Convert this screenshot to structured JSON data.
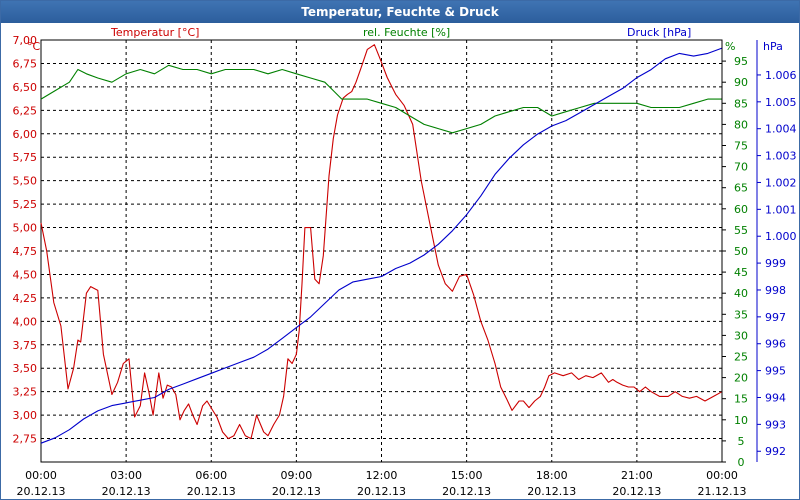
{
  "window": {
    "title": "Temperatur, Feuchte & Druck"
  },
  "chart_data": {
    "type": "line",
    "title": "Temperatur, Feuchte & Druck",
    "xlabel": "",
    "x_ticks": [
      {
        "hour": 0,
        "time": "00:00",
        "date": "20.12.13"
      },
      {
        "hour": 3,
        "time": "03:00",
        "date": "20.12.13"
      },
      {
        "hour": 6,
        "time": "06:00",
        "date": "20.12.13"
      },
      {
        "hour": 9,
        "time": "09:00",
        "date": "20.12.13"
      },
      {
        "hour": 12,
        "time": "12:00",
        "date": "20.12.13"
      },
      {
        "hour": 15,
        "time": "15:00",
        "date": "20.12.13"
      },
      {
        "hour": 18,
        "time": "18:00",
        "date": "20.12.13"
      },
      {
        "hour": 21,
        "time": "21:00",
        "date": "20.12.13"
      },
      {
        "hour": 24,
        "time": "00:00",
        "date": "21.12.13"
      }
    ],
    "xlim": [
      0,
      24
    ],
    "grid": true,
    "axes": {
      "temperature": {
        "unit": "°C",
        "label": "Temperatur [°C]",
        "color": "#cc0000",
        "ylim": [
          2.5,
          7.0
        ],
        "ticks": [
          2.75,
          3.0,
          3.25,
          3.5,
          3.75,
          4.0,
          4.25,
          4.5,
          4.75,
          5.0,
          5.25,
          5.5,
          5.75,
          6.0,
          6.25,
          6.5,
          6.75,
          7.0
        ],
        "tick_labels": [
          "2,75",
          "3,00",
          "3,25",
          "3,50",
          "3,75",
          "4,00",
          "4,25",
          "4,50",
          "4,75",
          "5,00",
          "5,25",
          "5,50",
          "5,75",
          "6,00",
          "6,25",
          "6,50",
          "6,75",
          "7,00"
        ]
      },
      "humidity": {
        "unit": "%",
        "label": "rel. Feuchte [%]",
        "color": "#008000",
        "ylim": [
          0,
          100
        ],
        "ticks": [
          0,
          5,
          10,
          15,
          20,
          25,
          30,
          35,
          40,
          45,
          50,
          55,
          60,
          65,
          70,
          75,
          80,
          85,
          90,
          95
        ],
        "tick_labels": [
          "0",
          "5",
          "10",
          "15",
          "20",
          "25",
          "30",
          "35",
          "40",
          "45",
          "50",
          "55",
          "60",
          "65",
          "70",
          "75",
          "80",
          "85",
          "90",
          "95"
        ]
      },
      "pressure": {
        "unit": "hPa",
        "label": "Druck [hPa]",
        "color": "#0000cc",
        "ylim": [
          991.6,
          1007.3
        ],
        "ticks": [
          992,
          993,
          994,
          995,
          996,
          997,
          998,
          999,
          1000,
          1001,
          1002,
          1003,
          1004,
          1005,
          1006
        ],
        "tick_labels": [
          "992",
          "993",
          "994",
          "995",
          "996",
          "997",
          "998",
          "999",
          "1.000",
          "1.001",
          "1.002",
          "1.003",
          "1.004",
          "1.005",
          "1.006"
        ]
      }
    },
    "series": [
      {
        "name": "Temperatur [°C]",
        "axis": "temperature",
        "color": "#cc0000",
        "x": [
          0,
          0.2,
          0.45,
          0.7,
          0.95,
          1.15,
          1.3,
          1.4,
          1.6,
          1.75,
          2.0,
          2.2,
          2.5,
          2.7,
          2.9,
          3.1,
          3.3,
          3.5,
          3.65,
          3.8,
          3.95,
          4.15,
          4.3,
          4.45,
          4.6,
          4.75,
          4.9,
          5.05,
          5.2,
          5.35,
          5.5,
          5.7,
          5.85,
          6.05,
          6.2,
          6.4,
          6.6,
          6.8,
          7.0,
          7.2,
          7.4,
          7.6,
          7.85,
          8.0,
          8.2,
          8.4,
          8.55,
          8.7,
          8.85,
          9.0,
          9.1,
          9.2,
          9.3,
          9.5,
          9.65,
          9.8,
          9.95,
          10.15,
          10.3,
          10.45,
          10.65,
          10.8,
          10.95,
          11.1,
          11.3,
          11.5,
          11.75,
          11.95,
          12.2,
          12.5,
          12.8,
          13.1,
          13.4,
          13.7,
          14.0,
          14.25,
          14.5,
          14.75,
          15.0,
          15.25,
          15.5,
          15.75,
          16.0,
          16.2,
          16.4,
          16.6,
          16.85,
          17.0,
          17.2,
          17.4,
          17.6,
          17.75,
          17.9,
          18.1,
          18.4,
          18.7,
          18.95,
          19.2,
          19.45,
          19.75,
          20.0,
          20.15,
          20.3,
          20.5,
          20.7,
          20.9,
          21.1,
          21.3,
          21.5,
          21.8,
          22.1,
          22.35,
          22.6,
          22.85,
          23.1,
          23.4,
          23.7,
          24.0
        ],
        "values": [
          5.05,
          4.75,
          4.2,
          3.95,
          3.28,
          3.5,
          3.8,
          3.78,
          4.3,
          4.37,
          4.33,
          3.65,
          3.22,
          3.35,
          3.55,
          3.6,
          2.98,
          3.1,
          3.45,
          3.25,
          3.0,
          3.45,
          3.18,
          3.32,
          3.3,
          3.22,
          2.95,
          3.05,
          3.12,
          3.0,
          2.9,
          3.1,
          3.15,
          3.05,
          2.98,
          2.82,
          2.75,
          2.78,
          2.9,
          2.78,
          2.75,
          3.0,
          2.82,
          2.78,
          2.9,
          3.0,
          3.2,
          3.6,
          3.55,
          3.65,
          3.9,
          4.4,
          5.0,
          5.0,
          4.45,
          4.4,
          4.7,
          5.55,
          5.95,
          6.2,
          6.38,
          6.42,
          6.45,
          6.55,
          6.72,
          6.9,
          6.95,
          6.8,
          6.6,
          6.42,
          6.3,
          6.1,
          5.5,
          5.05,
          4.6,
          4.4,
          4.32,
          4.48,
          4.5,
          4.28,
          4.0,
          3.8,
          3.55,
          3.3,
          3.18,
          3.05,
          3.15,
          3.15,
          3.08,
          3.15,
          3.2,
          3.3,
          3.42,
          3.45,
          3.42,
          3.45,
          3.38,
          3.42,
          3.4,
          3.45,
          3.35,
          3.38,
          3.35,
          3.32,
          3.3,
          3.3,
          3.25,
          3.3,
          3.25,
          3.2,
          3.2,
          3.25,
          3.2,
          3.18,
          3.2,
          3.15,
          3.2,
          3.25
        ]
      },
      {
        "name": "rel. Feuchte [%]",
        "axis": "humidity",
        "color": "#008000",
        "x": [
          0,
          0.5,
          1.0,
          1.3,
          1.6,
          2.0,
          2.5,
          3.0,
          3.5,
          4.0,
          4.5,
          5.0,
          5.5,
          6.0,
          6.5,
          7.0,
          7.5,
          8.0,
          8.5,
          9.0,
          9.5,
          10.0,
          10.3,
          10.6,
          11.0,
          11.5,
          12.0,
          12.5,
          13.0,
          13.5,
          14.0,
          14.5,
          15.0,
          15.5,
          16.0,
          16.5,
          17.0,
          17.5,
          18.0,
          18.5,
          19.0,
          19.5,
          20.0,
          20.5,
          21.0,
          21.5,
          22.0,
          22.5,
          23.0,
          23.5,
          24.0
        ],
        "values": [
          86,
          88,
          90,
          93,
          92,
          91,
          90,
          92,
          93,
          92,
          94,
          93,
          93,
          92,
          93,
          93,
          93,
          92,
          93,
          92,
          91,
          90,
          88,
          86,
          86,
          86,
          85,
          84,
          82,
          80,
          79,
          78,
          79,
          80,
          82,
          83,
          84,
          84,
          82,
          83,
          84,
          85,
          85,
          85,
          85,
          84,
          84,
          84,
          85,
          86,
          86
        ]
      },
      {
        "name": "Druck [hPa]",
        "axis": "pressure",
        "color": "#0000cc",
        "x": [
          0,
          0.5,
          1.0,
          1.5,
          2.0,
          2.5,
          3.0,
          3.5,
          4.0,
          4.5,
          5.0,
          5.5,
          6.0,
          6.5,
          7.0,
          7.5,
          8.0,
          8.5,
          9.0,
          9.5,
          10.0,
          10.5,
          11.0,
          11.5,
          12.0,
          12.5,
          13.0,
          13.5,
          14.0,
          14.5,
          15.0,
          15.5,
          16.0,
          16.5,
          17.0,
          17.5,
          18.0,
          18.5,
          19.0,
          19.5,
          20.0,
          20.5,
          21.0,
          21.5,
          22.0,
          22.5,
          23.0,
          23.5,
          24.0
        ],
        "values": [
          992.3,
          992.5,
          992.8,
          993.2,
          993.5,
          993.7,
          993.8,
          993.9,
          994.0,
          994.3,
          994.5,
          994.7,
          994.9,
          995.1,
          995.3,
          995.5,
          995.8,
          996.2,
          996.6,
          997.0,
          997.5,
          998.0,
          998.3,
          998.4,
          998.5,
          998.8,
          999.0,
          999.3,
          999.7,
          1000.2,
          1000.8,
          1001.5,
          1002.3,
          1002.9,
          1003.4,
          1003.8,
          1004.1,
          1004.3,
          1004.6,
          1004.9,
          1005.2,
          1005.5,
          1005.9,
          1006.2,
          1006.6,
          1006.8,
          1006.7,
          1006.8,
          1007.0
        ]
      }
    ]
  }
}
